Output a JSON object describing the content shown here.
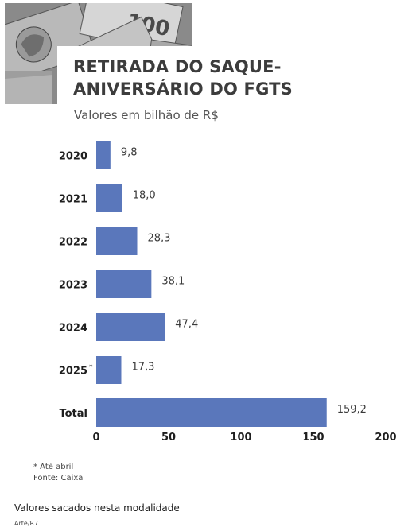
{
  "header": {
    "title_line1": "RETIRADA DO SAQUE-",
    "title_line2": "ANIVERSÁRIO DO FGTS",
    "subtitle": "Valores em bilhão de R$"
  },
  "chart_data": {
    "type": "bar",
    "orientation": "horizontal",
    "title": "RETIRADA DO SAQUE-ANIVERSÁRIO DO FGTS",
    "subtitle": "Valores em bilhão de R$",
    "categories": [
      "2020",
      "2021",
      "2022",
      "2023",
      "2024",
      "2025",
      "Total"
    ],
    "category_markers": [
      "",
      "",
      "",
      "",
      "",
      "*",
      ""
    ],
    "values": [
      9.8,
      18.0,
      28.3,
      38.1,
      47.4,
      17.3,
      159.2
    ],
    "value_labels": [
      "9,8",
      "18,0",
      "28,3",
      "38,1",
      "47,4",
      "17,3",
      "159,2"
    ],
    "xlim": [
      0,
      200
    ],
    "xticks": [
      0,
      50,
      100,
      150,
      200
    ],
    "grid": false,
    "bar_color": "#5a77bb"
  },
  "notes": {
    "footnote": "* Até abril",
    "source": "Fonte: Caixa"
  },
  "caption": "Valores sacados nesta modalidade",
  "credit": "Arte/R7"
}
